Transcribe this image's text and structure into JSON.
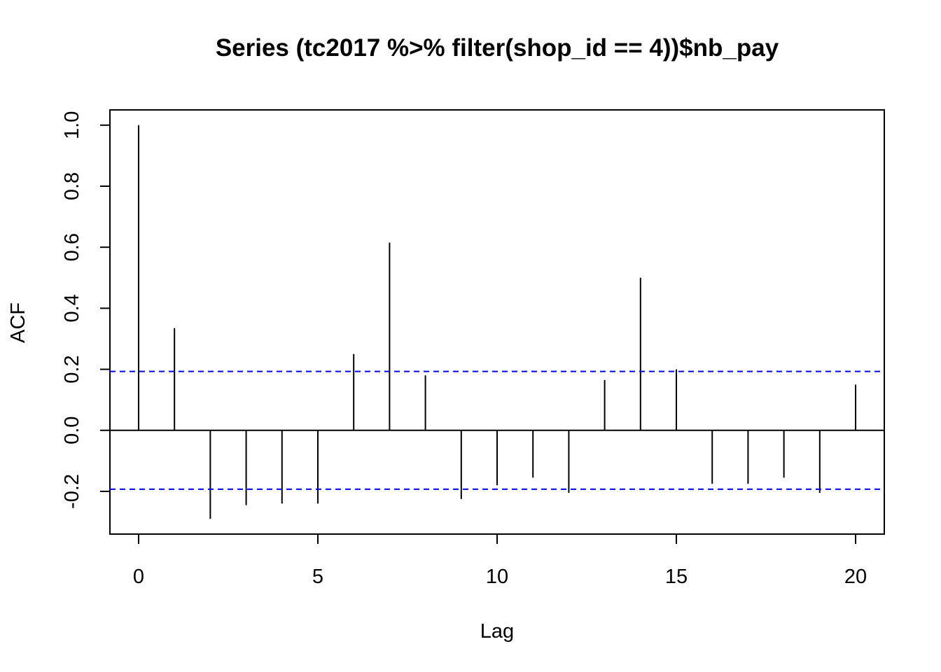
{
  "chart_data": {
    "type": "bar",
    "title": "Series  (tc2017 %>% filter(shop_id == 4))$nb_pay",
    "xlabel": "Lag",
    "ylabel": "ACF",
    "xlim": [
      -0.8,
      20.8
    ],
    "ylim": [
      -0.34,
      1.05
    ],
    "x_ticks": [
      0,
      5,
      10,
      15,
      20
    ],
    "x_tick_labels": [
      "0",
      "5",
      "10",
      "15",
      "20"
    ],
    "y_ticks": [
      -0.2,
      0.0,
      0.2,
      0.4,
      0.6,
      0.8,
      1.0
    ],
    "y_tick_labels": [
      "-0.2",
      "0.0",
      "0.2",
      "0.4",
      "0.6",
      "0.8",
      "1.0"
    ],
    "lags": [
      0,
      1,
      2,
      3,
      4,
      5,
      6,
      7,
      8,
      9,
      10,
      11,
      12,
      13,
      14,
      15,
      16,
      17,
      18,
      19,
      20
    ],
    "acf": [
      1.0,
      0.335,
      -0.29,
      -0.245,
      -0.24,
      -0.24,
      0.25,
      0.615,
      0.18,
      -0.225,
      -0.18,
      -0.155,
      -0.205,
      0.165,
      0.5,
      0.2,
      -0.175,
      -0.175,
      -0.155,
      -0.205,
      0.15
    ],
    "confidence_bound": 0.193,
    "confidence_color": "#0000ff",
    "bar_color": "#000000",
    "grid": false,
    "legend": "none"
  }
}
